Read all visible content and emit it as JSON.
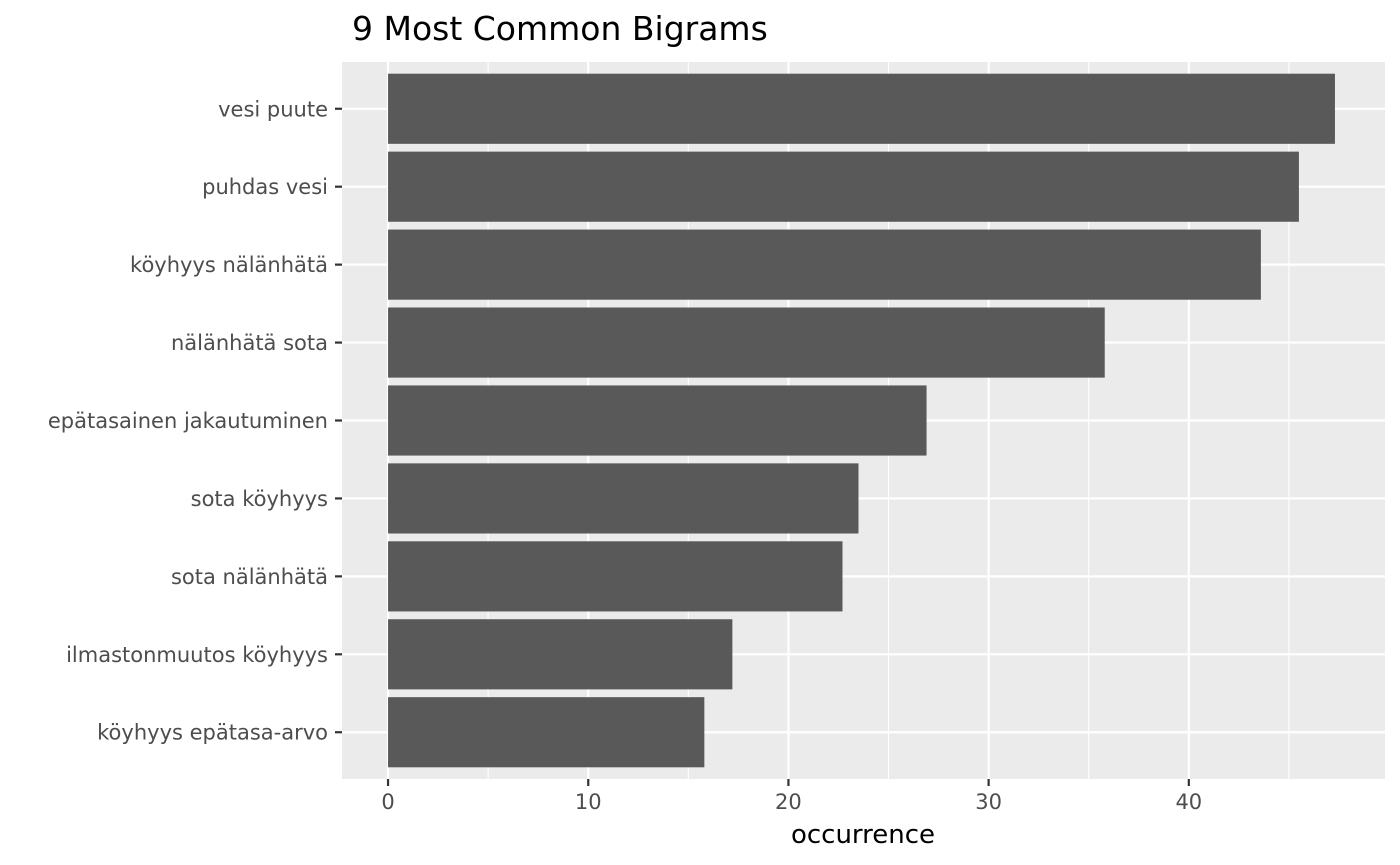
{
  "chart_data": {
    "type": "bar",
    "orientation": "horizontal",
    "title": "9 Most Common Bigrams",
    "xlabel": "occurrence",
    "ylabel": "",
    "categories": [
      "vesi puute",
      "puhdas vesi",
      "köyhyys nälänhätä",
      "nälänhätä sota",
      "epätasainen jakautuminen",
      "sota köyhyys",
      "sota nälänhätä",
      "ilmastonmuutos köyhyys",
      "köyhyys epätasa-arvo"
    ],
    "values": [
      47.3,
      45.5,
      43.6,
      35.8,
      26.9,
      23.5,
      22.7,
      17.2,
      15.8
    ],
    "xlim": [
      -2.3,
      49.8
    ],
    "xticks": [
      0,
      10,
      20,
      30,
      40
    ],
    "xtick_labels": [
      "0",
      "10",
      "20",
      "30",
      "40"
    ],
    "grid": true,
    "colors": {
      "panel": "#ebebeb",
      "grid_major": "#ffffff",
      "bar": "#595959",
      "tick_text": "#4d4d4d",
      "tick_mark": "#333333"
    }
  }
}
